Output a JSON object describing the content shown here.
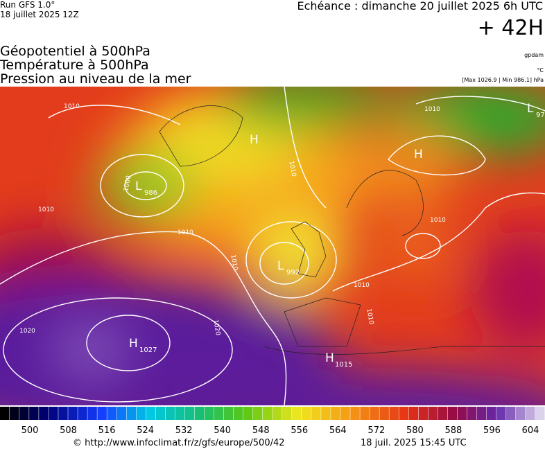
{
  "header": {
    "run": "Run GFS 1.0°",
    "run_date": "18 juillet 2025 12Z",
    "echeance": "Echéance : dimanche 20 juillet 2025 6h UTC",
    "lead": "+ 42H"
  },
  "legend": {
    "lines": [
      "Géopotentiel à 500hPa",
      "Température à 500hPa",
      "Pression au niveau de la mer"
    ],
    "units": [
      "gpdam",
      "°C",
      "[Max 1026.9 | Min 986.1] hPa"
    ]
  },
  "centers": [
    {
      "letter": "L",
      "value": 986
    },
    {
      "letter": "L",
      "value": 992
    },
    {
      "letter": "H",
      "value": 1027
    },
    {
      "letter": "H",
      "value": 1015
    },
    {
      "letter": "L",
      "value": 97
    },
    {
      "letter": "H"
    },
    {
      "letter": "H"
    }
  ],
  "isobar_labels": [
    1010,
    1000,
    1010,
    1010,
    1010,
    1010,
    1020,
    1020,
    1010,
    1010,
    1010,
    1010
  ],
  "colorbar": {
    "ticks": [
      500,
      508,
      516,
      524,
      532,
      540,
      548,
      556,
      564,
      572,
      580,
      588,
      596,
      604
    ]
  },
  "footer": {
    "url": "© http://www.infoclimat.fr/z/gfs/europe/500/42",
    "timestamp": "18 juil. 2025 15:45 UTC"
  }
}
